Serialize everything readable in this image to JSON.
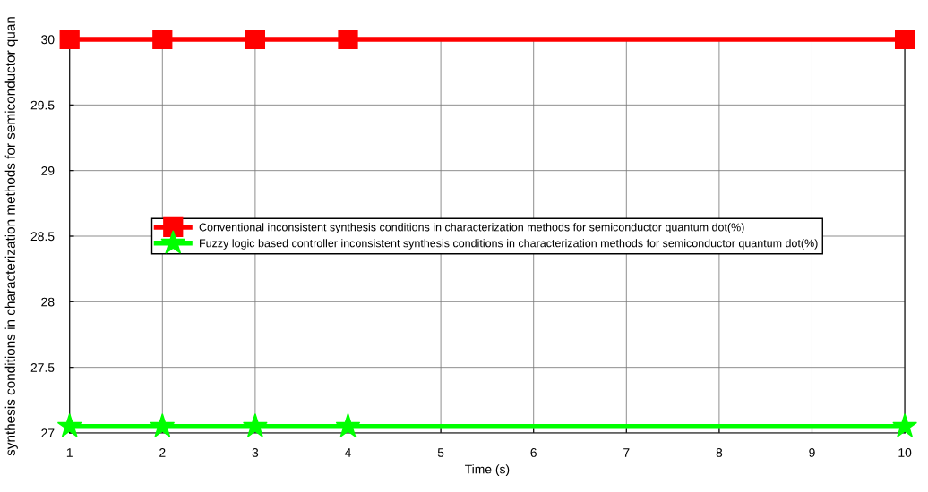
{
  "chart_data": {
    "type": "line",
    "xlabel": "Time (s)",
    "ylabel": "synthesis conditions in characterization methods for semiconductor quan",
    "x": [
      1,
      2,
      3,
      4,
      10
    ],
    "series": [
      {
        "name": "Conventional inconsistent synthesis conditions in characterization methods for semiconductor quantum dot(%)",
        "color": "#ff0000",
        "marker": "square",
        "values": [
          30,
          30,
          30,
          30,
          30
        ]
      },
      {
        "name": "Fuzzy logic based controller inconsistent synthesis conditions in characterization methods for semiconductor quantum dot(%)",
        "color": "#00ff00",
        "marker": "star",
        "values": [
          27.05,
          27.05,
          27.05,
          27.05,
          27.05
        ]
      }
    ],
    "xlim": [
      1,
      10
    ],
    "xticks": [
      1,
      2,
      3,
      4,
      5,
      6,
      7,
      8,
      9,
      10
    ],
    "ylim": [
      27,
      30
    ],
    "yticks": [
      27,
      27.5,
      28,
      28.5,
      29,
      29.5,
      30
    ],
    "grid": true,
    "legend": "center",
    "line_style": "solid"
  }
}
